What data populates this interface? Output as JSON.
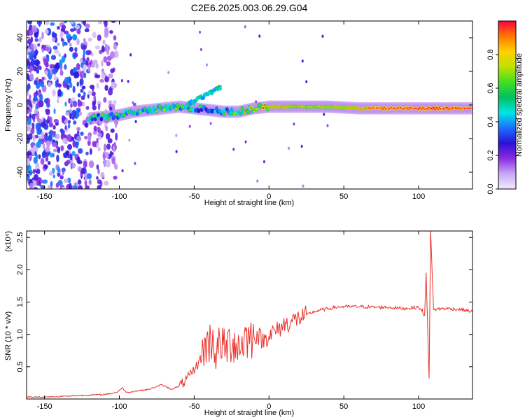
{
  "title": "C2E6.2025.003.06.29.G04",
  "chart_data": [
    {
      "type": "heatmap",
      "xlabel": "Height of straight line (km)",
      "ylabel": "Frequency (Hz)",
      "xlim": [
        -162,
        136
      ],
      "ylim": [
        -50,
        50
      ],
      "x_ticks": [
        -150,
        -100,
        -50,
        0,
        50,
        100
      ],
      "y_ticks": [
        -40,
        -20,
        0,
        20,
        40
      ],
      "colorbar": {
        "label": "Normalized spectral amplitude",
        "range": [
          0,
          1
        ],
        "ticks": [
          "0.0",
          "0.2",
          "0.4",
          "0.6",
          "0.8"
        ],
        "tick_values": [
          0,
          0.2,
          0.4,
          0.6,
          0.8
        ],
        "stops": [
          "#f2eaff",
          "#c8a8f5",
          "#8a2be2",
          "#2b10d8",
          "#1a70ff",
          "#00e5e5",
          "#00c060",
          "#40e020",
          "#c0e000",
          "#ffd000",
          "#ff7a00",
          "#ff0040"
        ]
      },
      "ridge": [
        {
          "x": -120,
          "y": -8,
          "a": 0.45
        },
        {
          "x": -110,
          "y": -7,
          "a": 0.5
        },
        {
          "x": -100,
          "y": -6,
          "a": 0.55
        },
        {
          "x": -90,
          "y": -4,
          "a": 0.55
        },
        {
          "x": -80,
          "y": -3,
          "a": 0.6
        },
        {
          "x": -70,
          "y": -2,
          "a": 0.6
        },
        {
          "x": -60,
          "y": -1,
          "a": 0.55
        },
        {
          "x": -50,
          "y": -2,
          "a": 0.5
        },
        {
          "x": -40,
          "y": -3,
          "a": 0.45
        },
        {
          "x": -30,
          "y": -4,
          "a": 0.5
        },
        {
          "x": -20,
          "y": -4,
          "a": 0.65
        },
        {
          "x": -10,
          "y": -2,
          "a": 0.75
        },
        {
          "x": 0,
          "y": -1,
          "a": 0.8
        },
        {
          "x": 10,
          "y": -1,
          "a": 0.8
        },
        {
          "x": 20,
          "y": -1,
          "a": 0.75
        },
        {
          "x": 30,
          "y": -1,
          "a": 0.75
        },
        {
          "x": 40,
          "y": -1,
          "a": 0.78
        },
        {
          "x": 50,
          "y": -1.5,
          "a": 0.8
        },
        {
          "x": 60,
          "y": -2,
          "a": 0.85
        },
        {
          "x": 70,
          "y": -2,
          "a": 0.92
        },
        {
          "x": 80,
          "y": -2,
          "a": 0.95
        },
        {
          "x": 90,
          "y": -2,
          "a": 0.95
        },
        {
          "x": 100,
          "y": -2,
          "a": 0.95
        },
        {
          "x": 110,
          "y": -2,
          "a": 0.98
        },
        {
          "x": 120,
          "y": -2,
          "a": 0.98
        },
        {
          "x": 130,
          "y": -2,
          "a": 0.98
        },
        {
          "x": 136,
          "y": -2,
          "a": 0.98
        }
      ],
      "branch": [
        {
          "x": -55,
          "y": 0,
          "a": 0.45
        },
        {
          "x": -48,
          "y": 3,
          "a": 0.45
        },
        {
          "x": -42,
          "y": 6,
          "a": 0.45
        },
        {
          "x": -36,
          "y": 9,
          "a": 0.5
        },
        {
          "x": -32,
          "y": 11,
          "a": 0.55
        }
      ]
    },
    {
      "type": "line",
      "xlabel": "Height of straight line (km)",
      "ylabel": "SNR (10 * v/v)",
      "y_multiplier": "(x10⁴)",
      "xlim": [
        -162,
        136
      ],
      "ylim": [
        0,
        2.6
      ],
      "x_ticks": [
        -150,
        -100,
        -50,
        0,
        50,
        100
      ],
      "y_ticks": [
        0.5,
        1.0,
        1.5,
        2.0,
        2.5
      ],
      "y_tick_labels": [
        "0.5",
        "1.0",
        "1.5",
        "2.0",
        "2.5"
      ],
      "color": "#e8302a",
      "x": [
        -162,
        -150,
        -140,
        -130,
        -120,
        -110,
        -102,
        -98,
        -95,
        -90,
        -80,
        -72,
        -65,
        -60,
        -55,
        -50,
        -45,
        -42,
        -40,
        -38,
        -35,
        -32,
        -30,
        -27,
        -24,
        -20,
        -16,
        -12,
        -8,
        -4,
        0,
        5,
        10,
        15,
        20,
        25,
        30,
        35,
        40,
        45,
        50,
        60,
        70,
        80,
        90,
        100,
        104,
        105,
        106,
        107,
        108,
        110,
        115,
        120,
        130,
        136
      ],
      "values": [
        0.03,
        0.03,
        0.04,
        0.05,
        0.06,
        0.07,
        0.1,
        0.17,
        0.1,
        0.12,
        0.15,
        0.22,
        0.15,
        0.2,
        0.3,
        0.45,
        0.65,
        0.85,
        0.85,
        0.95,
        0.7,
        0.9,
        0.75,
        0.85,
        0.9,
        0.8,
        0.95,
        0.95,
        1.0,
        0.9,
        1.0,
        1.05,
        1.15,
        1.2,
        1.25,
        1.3,
        1.35,
        1.38,
        1.4,
        1.42,
        1.43,
        1.43,
        1.42,
        1.42,
        1.4,
        1.42,
        1.3,
        2.0,
        1.1,
        0.3,
        2.6,
        1.38,
        1.4,
        1.4,
        1.38,
        1.35
      ]
    }
  ]
}
